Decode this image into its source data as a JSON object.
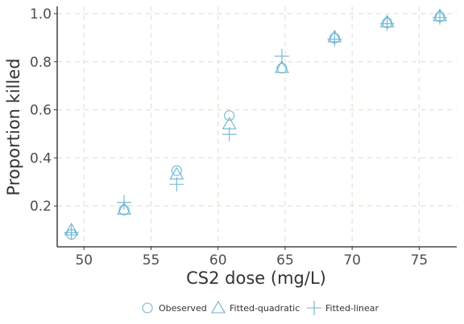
{
  "chart_data": {
    "type": "scatter",
    "xlabel": "CS2 dose (mg/L)",
    "ylabel": "Proportion killed",
    "xlim": [
      48.0,
      77.8
    ],
    "ylim": [
      0.03,
      1.03
    ],
    "xticks": [
      50,
      55,
      60,
      65,
      70,
      75
    ],
    "yticks": [
      0.2,
      0.4,
      0.6,
      0.8,
      1.0
    ],
    "xtick_labels": [
      "50",
      "55",
      "60",
      "65",
      "70",
      "75"
    ],
    "ytick_labels": [
      "0.2",
      "0.4",
      "0.6",
      "0.8",
      "1.0"
    ],
    "grid": true,
    "legend_position": "bottom",
    "color": "#6bb5cf",
    "grid_color": "#ece6da",
    "x": [
      49.06,
      52.99,
      56.91,
      60.84,
      64.76,
      68.69,
      72.61,
      76.54
    ],
    "series": [
      {
        "name": "Obeserved",
        "marker": "circle",
        "values": [
          0.082,
          0.183,
          0.347,
          0.576,
          0.773,
          0.898,
          0.962,
          0.987
        ]
      },
      {
        "name": "Fitted-quadratic",
        "marker": "triangle",
        "values": [
          0.1,
          0.186,
          0.332,
          0.541,
          0.775,
          0.903,
          0.965,
          0.991
        ]
      },
      {
        "name": "Fitted-linear",
        "marker": "plus",
        "values": [
          0.089,
          0.215,
          0.29,
          0.498,
          0.823,
          0.894,
          0.958,
          0.984
        ]
      }
    ]
  }
}
